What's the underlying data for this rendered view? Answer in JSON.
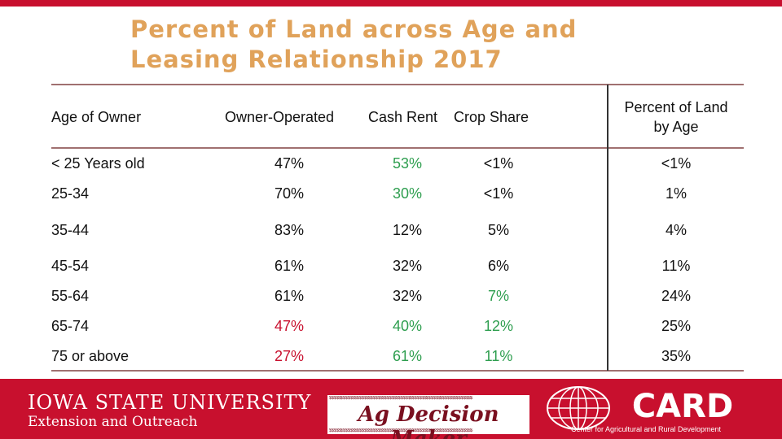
{
  "title": {
    "line1": "Percent of Land across Age and",
    "line2": "Leasing Relationship 2017"
  },
  "table": {
    "headers": {
      "age": "Age of Owner",
      "owner_operated": "Owner-Operated",
      "cash_rent": "Cash Rent",
      "crop_share": "Crop Share",
      "pct_land_line1": "Percent of Land",
      "pct_land_line2": "by Age"
    },
    "rows": [
      {
        "age": "< 25 Years old",
        "oo": "47%",
        "cr": "53%",
        "cs": "<1%",
        "pl": "<1%",
        "oo_color": "#111111",
        "cr_color": "#2e9e4f",
        "cs_color": "#111111"
      },
      {
        "age": "25-34",
        "oo": "70%",
        "cr": "30%",
        "cs": "<1%",
        "pl": "1%",
        "oo_color": "#111111",
        "cr_color": "#2e9e4f",
        "cs_color": "#111111"
      },
      {
        "age": "35-44",
        "oo": "83%",
        "cr": "12%",
        "cs": "5%",
        "pl": "4%",
        "oo_color": "#111111",
        "cr_color": "#111111",
        "cs_color": "#111111"
      },
      {
        "age": "45-54",
        "oo": "61%",
        "cr": "32%",
        "cs": "6%",
        "pl": "11%",
        "oo_color": "#111111",
        "cr_color": "#111111",
        "cs_color": "#111111"
      },
      {
        "age": "55-64",
        "oo": "61%",
        "cr": "32%",
        "cs": "7%",
        "pl": "24%",
        "oo_color": "#111111",
        "cr_color": "#111111",
        "cs_color": "#2e9e4f"
      },
      {
        "age": "65-74",
        "oo": "47%",
        "cr": "40%",
        "cs": "12%",
        "pl": "25%",
        "oo_color": "#c8102e",
        "cr_color": "#2e9e4f",
        "cs_color": "#2e9e4f"
      },
      {
        "age": "75 or above",
        "oo": "27%",
        "cr": "61%",
        "cs": "11%",
        "pl": "35%",
        "oo_color": "#c8102e",
        "cr_color": "#2e9e4f",
        "cs_color": "#2e9e4f"
      }
    ]
  },
  "footer": {
    "isu_line1": "IOWA STATE UNIVERSITY",
    "isu_line2": "Extension and Outreach",
    "adm_text": "Ag Decision Maker",
    "adm_pattern": "$$$$$$$$$$$$$$$$$$$$$$$$$$$$$$$$$$$$$$$$$$$$$$$$$$$$$$$$$$$$$$",
    "card_name": "CARD",
    "card_sub": "Center for Agricultural and Rural Development"
  },
  "colors": {
    "accent_red": "#c8102e",
    "title_gold": "#e0a25a",
    "highlight_green": "#2e9e4f",
    "highlight_red": "#c8102e"
  }
}
